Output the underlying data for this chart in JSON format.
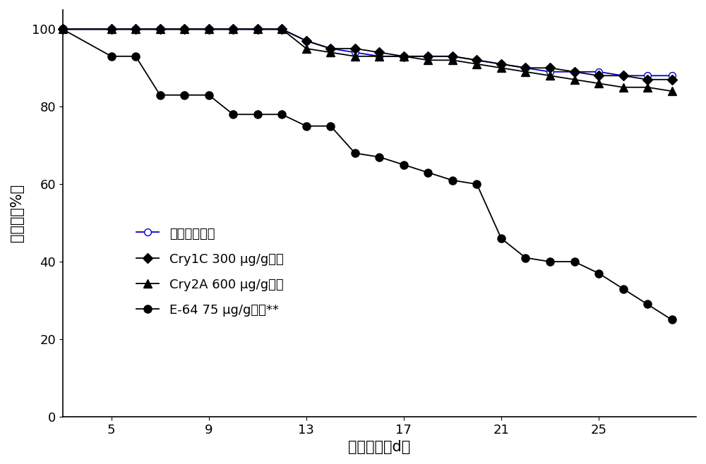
{
  "control": {
    "label": "对照：纯饲料",
    "color": "#0000cc",
    "marker": "o",
    "markerfacecolor": "white",
    "markersize": 7,
    "linewidth": 1.3,
    "x": [
      3,
      5,
      6,
      7,
      8,
      9,
      10,
      11,
      12,
      13,
      14,
      15,
      16,
      17,
      18,
      19,
      20,
      21,
      22,
      23,
      24,
      25,
      26,
      27,
      28
    ],
    "y": [
      100,
      100,
      100,
      100,
      100,
      100,
      100,
      100,
      100,
      97,
      95,
      94,
      93,
      93,
      93,
      93,
      92,
      91,
      90,
      89,
      89,
      89,
      88,
      88,
      88
    ]
  },
  "cry1c": {
    "label": "Cry1C 300 μg/g饲料",
    "color": "#000000",
    "marker": "D",
    "markerfacecolor": "#000000",
    "markersize": 7,
    "linewidth": 1.3,
    "x": [
      3,
      5,
      6,
      7,
      8,
      9,
      10,
      11,
      12,
      13,
      14,
      15,
      16,
      17,
      18,
      19,
      20,
      21,
      22,
      23,
      24,
      25,
      26,
      27,
      28
    ],
    "y": [
      100,
      100,
      100,
      100,
      100,
      100,
      100,
      100,
      100,
      97,
      95,
      95,
      94,
      93,
      93,
      93,
      92,
      91,
      90,
      90,
      89,
      88,
      88,
      87,
      87
    ]
  },
  "cry2a": {
    "label": "Cry2A 600 μg/g饲料",
    "color": "#000000",
    "marker": "^",
    "markerfacecolor": "#000000",
    "markersize": 8,
    "linewidth": 1.3,
    "x": [
      3,
      5,
      6,
      7,
      8,
      9,
      10,
      11,
      12,
      13,
      14,
      15,
      16,
      17,
      18,
      19,
      20,
      21,
      22,
      23,
      24,
      25,
      26,
      27,
      28
    ],
    "y": [
      100,
      100,
      100,
      100,
      100,
      100,
      100,
      100,
      100,
      95,
      94,
      93,
      93,
      93,
      92,
      92,
      91,
      90,
      89,
      88,
      87,
      86,
      85,
      85,
      84
    ]
  },
  "e64": {
    "label": "E-64 75 μg/g饲料**",
    "color": "#000000",
    "marker": "o",
    "markerfacecolor": "#000000",
    "markersize": 8,
    "linewidth": 1.3,
    "x": [
      3,
      5,
      6,
      7,
      8,
      9,
      10,
      11,
      12,
      13,
      14,
      15,
      16,
      17,
      18,
      19,
      20,
      21,
      22,
      23,
      24,
      25,
      26,
      27,
      28
    ],
    "y": [
      100,
      93,
      93,
      83,
      83,
      83,
      78,
      78,
      78,
      75,
      75,
      68,
      67,
      65,
      63,
      61,
      60,
      46,
      41,
      40,
      40,
      37,
      33,
      29,
      25
    ]
  },
  "xlim": [
    3,
    29
  ],
  "ylim": [
    0,
    105
  ],
  "xticks": [
    5,
    9,
    13,
    17,
    21,
    25
  ],
  "yticks": [
    0,
    20,
    40,
    60,
    80,
    100
  ],
  "xlabel": "取食时间（d）",
  "ylabel": "生存率（%）",
  "figsize": [
    10.0,
    6.58
  ],
  "dpi": 100
}
